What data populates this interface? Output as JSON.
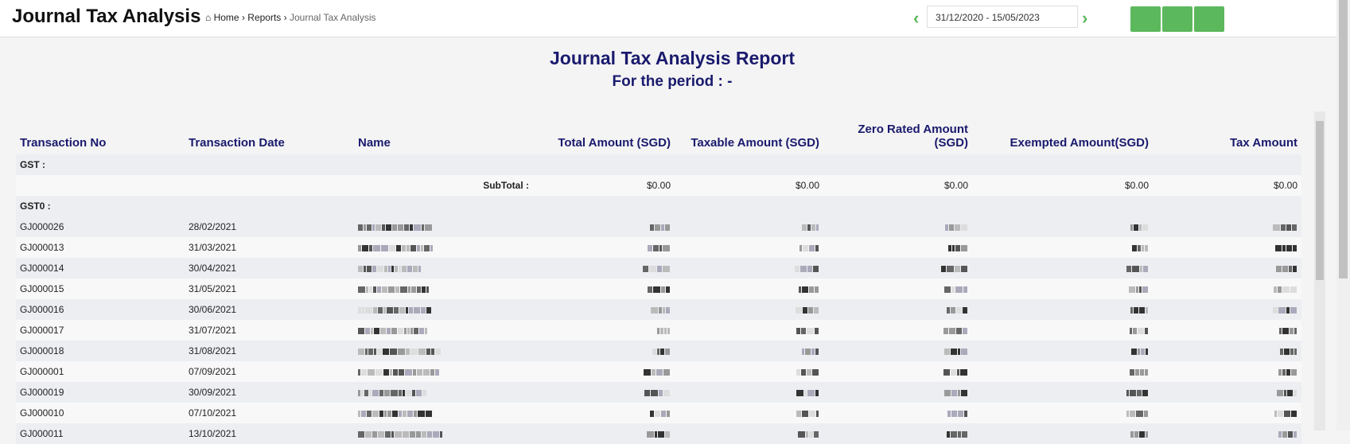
{
  "header": {
    "title": "Journal Tax Analysis",
    "breadcrumb": [
      "Home",
      "Reports",
      "Journal Tax Analysis"
    ],
    "date_range": "31/12/2020 - 15/05/2023"
  },
  "report": {
    "title": "Journal Tax Analysis Report",
    "subtitle": "For the period : -"
  },
  "table": {
    "columns": [
      "Transaction No",
      "Transaction Date",
      "Name",
      "Total Amount (SGD)",
      "Taxable Amount (SGD)",
      "Zero Rated Amount (SGD)",
      "Exempted Amount(SGD)",
      "Tax Amount"
    ],
    "groups": [
      {
        "label": "GST :",
        "subtotal_label": "SubTotal :",
        "subtotals": [
          "$0.00",
          "$0.00",
          "$0.00",
          "$0.00",
          "$0.00"
        ]
      },
      {
        "label": "GST0 :",
        "rows": [
          [
            "GJ000026",
            "28/02/2021"
          ],
          [
            "GJ000013",
            "31/03/2021"
          ],
          [
            "GJ000014",
            "30/04/2021"
          ],
          [
            "GJ000015",
            "31/05/2021"
          ],
          [
            "GJ000016",
            "30/06/2021"
          ],
          [
            "GJ000017",
            "31/07/2021"
          ],
          [
            "GJ000018",
            "31/08/2021"
          ],
          [
            "GJ000001",
            "07/09/2021"
          ],
          [
            "GJ000019",
            "30/09/2021"
          ],
          [
            "GJ000010",
            "07/10/2021"
          ],
          [
            "GJ000011",
            "13/10/2021"
          ]
        ]
      }
    ]
  }
}
